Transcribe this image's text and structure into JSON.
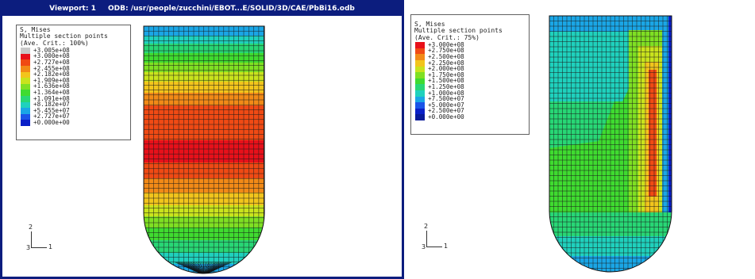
{
  "left_viewport": {
    "title_viewport": "Viewport: 1",
    "title_odb": "ODB: /usr/people/zucchini/EBOT...E/SOLID/3D/CAE/PbBi16.odb",
    "legend": {
      "title": "S, Mises",
      "subtitle": "Multiple section points",
      "crit": "(Ave. Crit.: 100%)",
      "items": [
        {
          "label": "+3.005e+08",
          "color": "#c8c8c8"
        },
        {
          "label": "+3.000e+08",
          "color": "#e8101a"
        },
        {
          "label": "+2.727e+08",
          "color": "#f04a14"
        },
        {
          "label": "+2.455e+08",
          "color": "#f28a17"
        },
        {
          "label": "+2.182e+08",
          "color": "#f2c51c"
        },
        {
          "label": "+1.909e+08",
          "color": "#c9e31d"
        },
        {
          "label": "+1.636e+08",
          "color": "#7fe023"
        },
        {
          "label": "+1.364e+08",
          "color": "#3fdb30"
        },
        {
          "label": "+1.091e+08",
          "color": "#28d775"
        },
        {
          "label": "+8.182e+07",
          "color": "#1fd1bd"
        },
        {
          "label": "+5.455e+07",
          "color": "#1aa6e6"
        },
        {
          "label": "+2.727e+07",
          "color": "#1b54e8"
        },
        {
          "label": "+0.000e+00",
          "color": "#0a20c8"
        }
      ]
    },
    "triad": {
      "y": "2",
      "z": "3",
      "x": "1"
    }
  },
  "right_viewport": {
    "legend": {
      "title": "S, Mises",
      "subtitle": "Multiple section points",
      "crit": "(Ave. Crit.: 75%)",
      "items": [
        {
          "label": "+3.000e+08",
          "color": "#e8101a"
        },
        {
          "label": "+2.750e+08",
          "color": "#f04a14"
        },
        {
          "label": "+2.500e+08",
          "color": "#f28a17"
        },
        {
          "label": "+2.250e+08",
          "color": "#f2c51c"
        },
        {
          "label": "+2.000e+08",
          "color": "#c9e31d"
        },
        {
          "label": "+1.750e+08",
          "color": "#7fe023"
        },
        {
          "label": "+1.500e+08",
          "color": "#3fdb30"
        },
        {
          "label": "+1.250e+08",
          "color": "#28d775"
        },
        {
          "label": "+1.000e+08",
          "color": "#1fd1bd"
        },
        {
          "label": "+7.500e+07",
          "color": "#1aa6e6"
        },
        {
          "label": "+5.000e+07",
          "color": "#1b54e8"
        },
        {
          "label": "+2.500e+07",
          "color": "#0a20c8"
        },
        {
          "label": "+0.000e+00",
          "color": "#081a9a"
        }
      ]
    },
    "triad": {
      "y": "2",
      "z": "3",
      "x": "1"
    }
  }
}
